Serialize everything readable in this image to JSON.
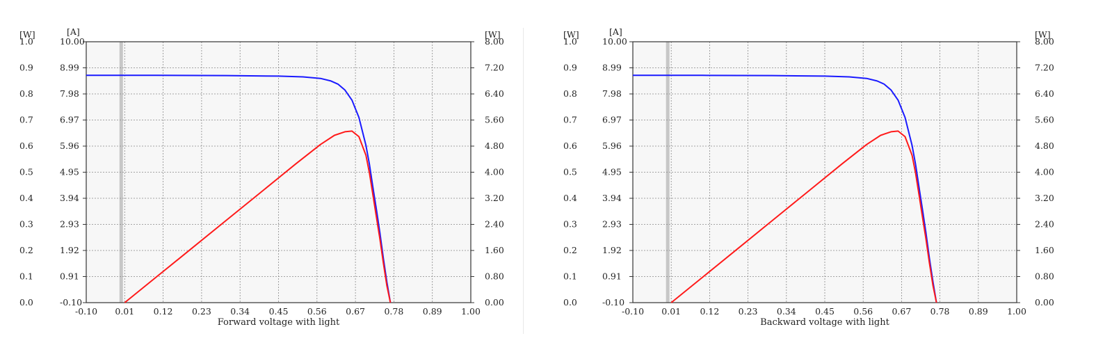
{
  "colors": {
    "plot_background": "#f7f7f7",
    "grid": "#888888",
    "current_curve": "#1a1aff",
    "power_curve": "#ff1a1a",
    "axis": "#333333",
    "zero_band": "#a0a0a0"
  },
  "chart_data": [
    {
      "type": "line",
      "title": "",
      "xlabel": "Forward voltage with light",
      "unit_labels": {
        "left_outer": "[W]",
        "left_inner": "[A]",
        "right": "[W]"
      },
      "xlim": [
        -0.1,
        1.0
      ],
      "x_ticks": [
        "-0.10",
        "0.01",
        "0.12",
        "0.23",
        "0.34",
        "0.45",
        "0.56",
        "0.67",
        "0.78",
        "0.89",
        "1.00"
      ],
      "y_ticks_left_outer": [
        "0.0",
        "0.1",
        "0.2",
        "0.3",
        "0.4",
        "0.5",
        "0.6",
        "0.7",
        "0.8",
        "0.9",
        "1.0"
      ],
      "y_ticks_left_inner": [
        "-0.10",
        "0.91",
        "1.92",
        "2.93",
        "3.94",
        "4.95",
        "5.96",
        "6.97",
        "7.98",
        "8.99",
        "10.00"
      ],
      "y_ticks_right": [
        "0.00",
        "0.80",
        "1.60",
        "2.40",
        "3.20",
        "4.00",
        "4.80",
        "5.60",
        "6.40",
        "7.20",
        "8.00"
      ],
      "ylim_current": [
        -0.1,
        10.0
      ],
      "ylim_power": [
        0.0,
        8.0
      ],
      "grid": true,
      "series": [
        {
          "axis": "current",
          "color": "#1a1aff",
          "x": [
            -0.1,
            0.1,
            0.3,
            0.45,
            0.52,
            0.57,
            0.6,
            0.62,
            0.64,
            0.66,
            0.68,
            0.7,
            0.71,
            0.72,
            0.73,
            0.74,
            0.75,
            0.76,
            0.77
          ],
          "y": [
            8.7,
            8.7,
            8.69,
            8.67,
            8.64,
            8.58,
            8.48,
            8.36,
            8.13,
            7.74,
            7.07,
            5.99,
            5.26,
            4.37,
            3.5,
            2.6,
            1.61,
            0.7,
            -0.1
          ]
        },
        {
          "axis": "power",
          "color": "#ff1a1a",
          "x": [
            0.01,
            0.1,
            0.2,
            0.3,
            0.4,
            0.5,
            0.57,
            0.61,
            0.64,
            0.66,
            0.68,
            0.7,
            0.71,
            0.72,
            0.73,
            0.74,
            0.75,
            0.76,
            0.77
          ],
          "y": [
            0.0,
            0.78,
            1.65,
            2.52,
            3.39,
            4.26,
            4.85,
            5.13,
            5.24,
            5.26,
            5.09,
            4.52,
            3.98,
            3.31,
            2.62,
            1.95,
            1.21,
            0.52,
            0.0
          ]
        }
      ]
    },
    {
      "type": "line",
      "title": "",
      "xlabel": "Backward voltage with light",
      "unit_labels": {
        "left_outer": "[W]",
        "left_inner": "[A]",
        "right": "[W]"
      },
      "xlim": [
        -0.1,
        1.0
      ],
      "x_ticks": [
        "-0.10",
        "0.01",
        "0.12",
        "0.23",
        "0.34",
        "0.45",
        "0.56",
        "0.67",
        "0.78",
        "0.89",
        "1.00"
      ],
      "y_ticks_left_outer": [
        "0.0",
        "0.1",
        "0.2",
        "0.3",
        "0.4",
        "0.5",
        "0.6",
        "0.7",
        "0.8",
        "0.9",
        "1.0"
      ],
      "y_ticks_left_inner": [
        "-0.10",
        "0.91",
        "1.92",
        "2.93",
        "3.94",
        "4.95",
        "5.96",
        "6.97",
        "7.98",
        "8.99",
        "10.00"
      ],
      "y_ticks_right": [
        "0.00",
        "0.80",
        "1.60",
        "2.40",
        "3.20",
        "4.00",
        "4.80",
        "5.60",
        "6.40",
        "7.20",
        "8.00"
      ],
      "ylim_current": [
        -0.1,
        10.0
      ],
      "ylim_power": [
        0.0,
        8.0
      ],
      "grid": true,
      "series": [
        {
          "axis": "current",
          "color": "#1a1aff",
          "x": [
            -0.1,
            0.1,
            0.3,
            0.45,
            0.52,
            0.57,
            0.6,
            0.62,
            0.64,
            0.66,
            0.68,
            0.7,
            0.71,
            0.72,
            0.73,
            0.74,
            0.75,
            0.76,
            0.77
          ],
          "y": [
            8.7,
            8.7,
            8.69,
            8.67,
            8.64,
            8.58,
            8.48,
            8.36,
            8.13,
            7.74,
            7.07,
            5.99,
            5.26,
            4.37,
            3.5,
            2.6,
            1.61,
            0.7,
            -0.1
          ]
        },
        {
          "axis": "power",
          "color": "#ff1a1a",
          "x": [
            0.01,
            0.1,
            0.2,
            0.3,
            0.4,
            0.5,
            0.57,
            0.61,
            0.64,
            0.66,
            0.68,
            0.7,
            0.71,
            0.72,
            0.73,
            0.74,
            0.75,
            0.76,
            0.77
          ],
          "y": [
            0.0,
            0.78,
            1.65,
            2.52,
            3.39,
            4.26,
            4.85,
            5.13,
            5.24,
            5.26,
            5.09,
            4.52,
            3.98,
            3.31,
            2.62,
            1.95,
            1.21,
            0.52,
            0.0
          ]
        }
      ]
    }
  ]
}
